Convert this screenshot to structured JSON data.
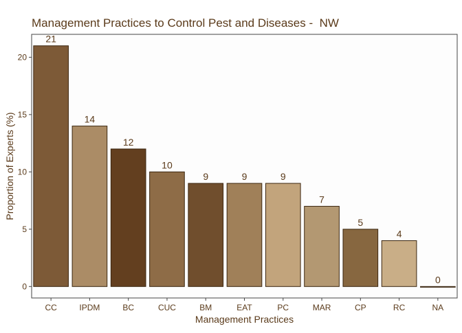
{
  "chart_data": {
    "type": "bar",
    "title": "Management Practices to Control Pest and Diseases -  NW",
    "xlabel": "Management Practices",
    "ylabel": "Proportion of Experts (%)",
    "categories": [
      "CC",
      "IPDM",
      "BC",
      "CUC",
      "BM",
      "EAT",
      "PC",
      "MAR",
      "CP",
      "RC",
      "NA"
    ],
    "values": [
      21,
      14,
      12,
      10,
      9,
      9,
      9,
      7,
      5,
      4,
      0
    ],
    "value_labels": [
      "21",
      "14",
      "12",
      "10",
      "9",
      "9",
      "9",
      "7",
      "5",
      "4",
      "0"
    ],
    "bar_colors": [
      "#7d5a37",
      "#ab8c66",
      "#633f1f",
      "#8e6c47",
      "#704e2d",
      "#a08059",
      "#c2a47c",
      "#b39872",
      "#876740",
      "#c9ae87",
      "#ffffff"
    ],
    "y_ticks": [
      0,
      5,
      10,
      15,
      20
    ],
    "y_tick_labels": [
      "0",
      "5",
      "10",
      "15",
      "20"
    ],
    "ylim": [
      -1,
      22
    ],
    "grid": false,
    "legend": "none",
    "colors": {
      "text": "#5a3a1a",
      "bar_outline": "#3b2610",
      "panel_border": "#444444",
      "background": "#ffffff"
    }
  }
}
